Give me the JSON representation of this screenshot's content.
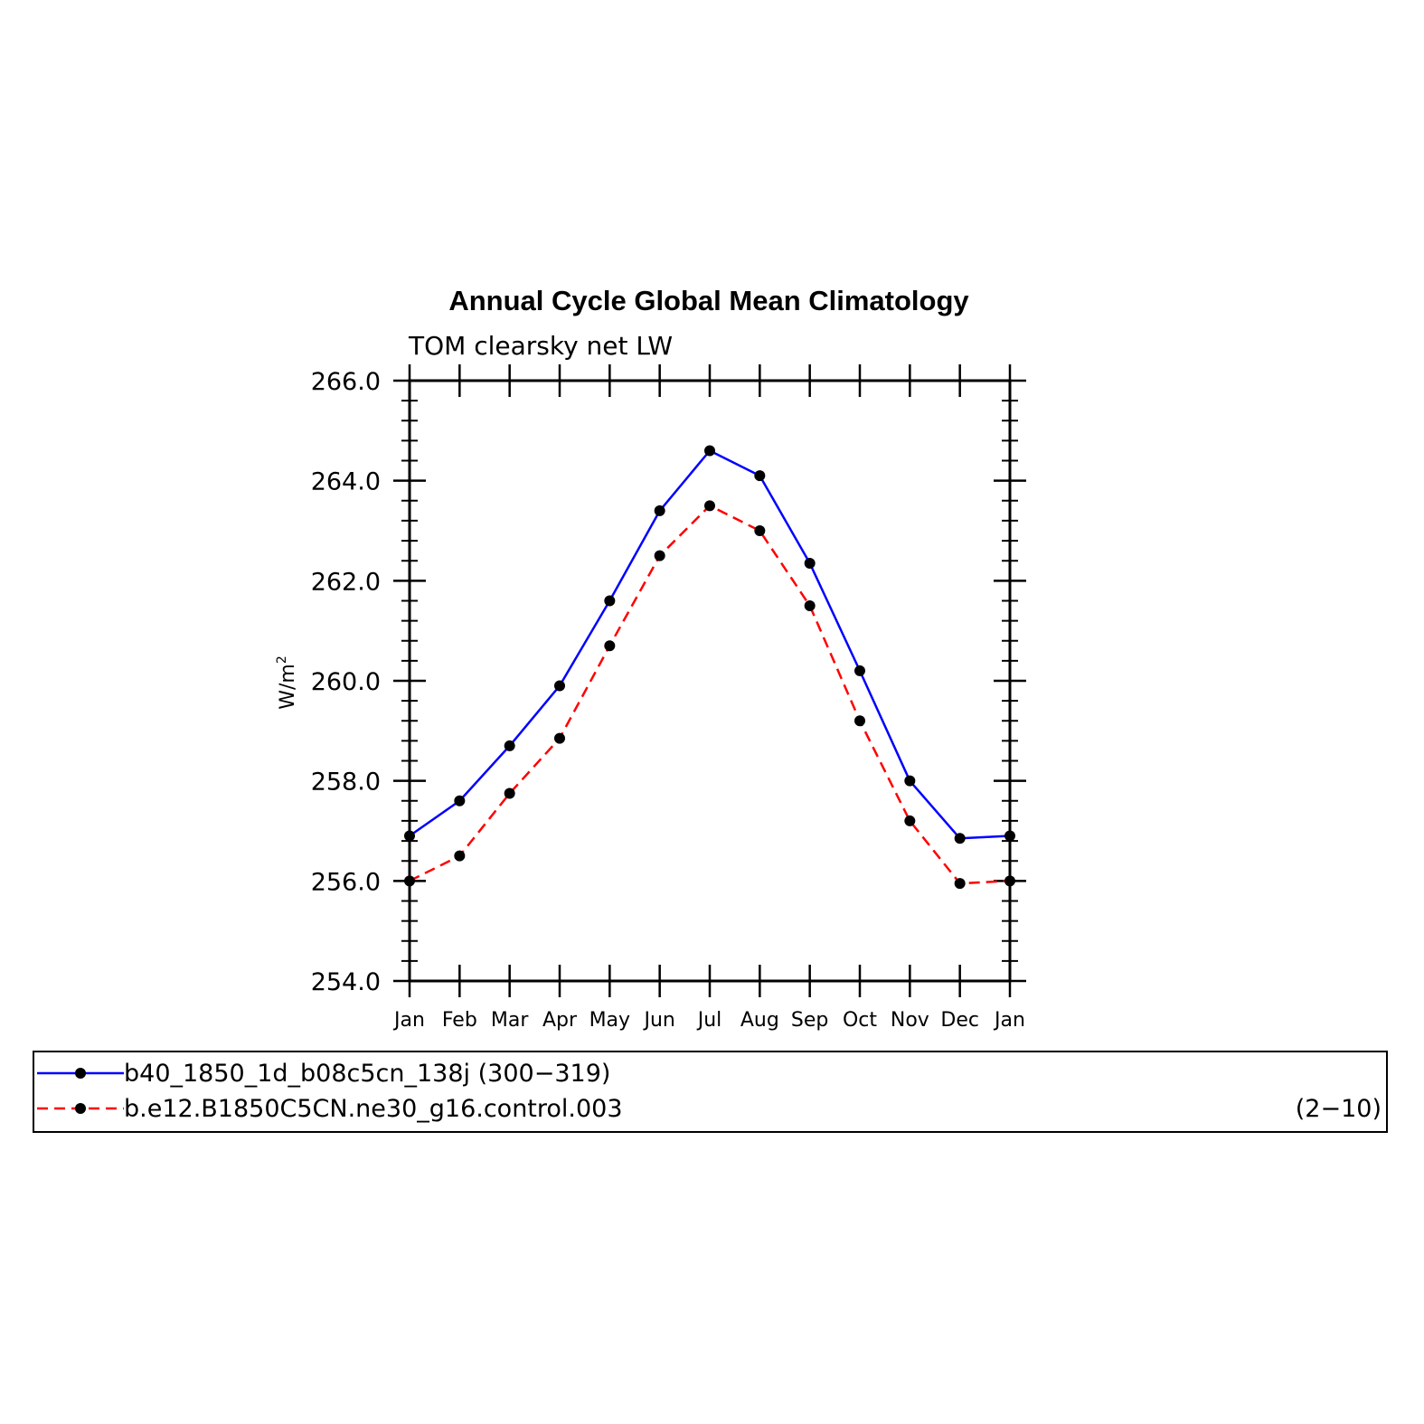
{
  "chart_data": {
    "type": "line",
    "title": "Annual Cycle Global Mean Climatology",
    "subtitle": "TOM clearsky net LW",
    "xlabel": "",
    "ylabel": "W/m",
    "ylabel_superscript": "2",
    "categories": [
      "Jan",
      "Feb",
      "Mar",
      "Apr",
      "May",
      "Jun",
      "Jul",
      "Aug",
      "Sep",
      "Oct",
      "Nov",
      "Dec",
      "Jan"
    ],
    "ylim": [
      254.0,
      266.0
    ],
    "yticks": [
      "254.0",
      "256.0",
      "258.0",
      "260.0",
      "262.0",
      "264.0",
      "266.0"
    ],
    "grid": false,
    "series": [
      {
        "name": "b40_1850_1d_b08c5cn_138j",
        "years": "(300−319)",
        "color": "#0000ff",
        "dash": "solid",
        "values": [
          256.9,
          257.6,
          258.7,
          259.9,
          261.6,
          263.4,
          264.6,
          264.1,
          262.35,
          260.2,
          258.0,
          256.85,
          256.9
        ]
      },
      {
        "name": "b.e12.B1850C5CN.ne30_g16.control.003",
        "years": "(2−10)",
        "color": "#ff0000",
        "dash": "dashed",
        "values": [
          256.0,
          256.5,
          257.75,
          258.85,
          260.7,
          262.5,
          263.5,
          263.0,
          261.5,
          259.2,
          257.2,
          255.95,
          256.0
        ]
      }
    ],
    "marker_color": "#000000",
    "legend_position": "bottom"
  }
}
